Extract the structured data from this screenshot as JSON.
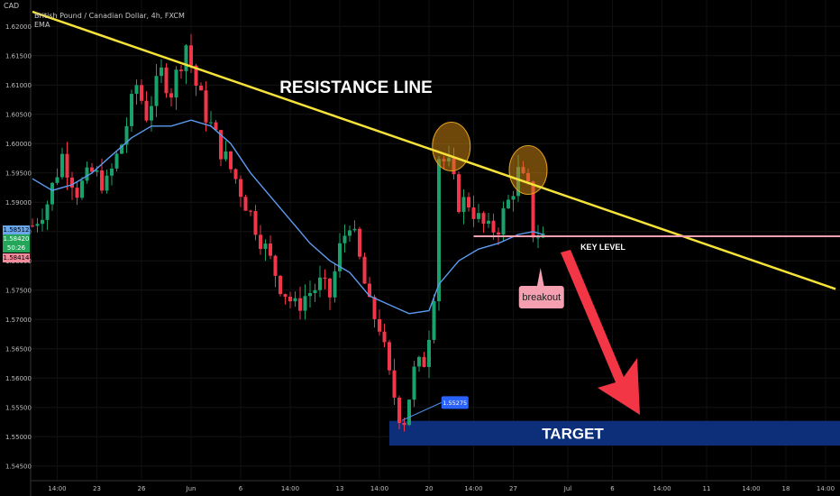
{
  "header": {
    "axis_currency": "CAD",
    "title": "British Pound / Canadian Dollar, 4h, FXCM",
    "indicator": "EMA"
  },
  "price_tags": [
    {
      "label": "1.58512",
      "color": "#6aa6e8"
    },
    {
      "label": "1.58420",
      "color": "#23a55a"
    },
    {
      "label": "50:26",
      "color": "#23a55a"
    },
    {
      "label": "1.58414",
      "color": "#f28b9b"
    }
  ],
  "annotations": {
    "resistance_label": "RESISTANCE LINE",
    "key_level_label": "KEY LEVEL",
    "breakout_label": "breakout",
    "target_label": "TARGET",
    "low_price_label": "1.55275"
  },
  "colors": {
    "bull": "#1aa06a",
    "bear": "#f2364a",
    "ema": "#5b9cf0",
    "resistance": "#f5e33a",
    "key_level": "#f4a0b0",
    "target_box": "#0d2f7a",
    "arrow": "#f23645"
  },
  "chart_data": {
    "type": "candlestick",
    "symbol": "GBPCAD",
    "timeframe": "4h",
    "y_ticks": [
      1.62,
      1.615,
      1.61,
      1.605,
      1.6,
      1.595,
      1.59,
      1.585,
      1.58,
      1.575,
      1.57,
      1.565,
      1.56,
      1.555,
      1.55,
      1.545
    ],
    "y_tick_labels": [
      "1.62000",
      "1.61500",
      "1.61000",
      "1.60500",
      "1.60000",
      "1.59500",
      "1.59000",
      "1.58500",
      "1.58000",
      "1.57500",
      "1.57000",
      "1.56500",
      "1.56000",
      "1.55500",
      "1.55000",
      "1.54500"
    ],
    "ylim": [
      1.5425,
      1.6245
    ],
    "x_tick_labels": [
      "14:00",
      "23",
      "26",
      "Jun",
      "6",
      "14:00",
      "13",
      "14:00",
      "20",
      "14:00",
      "27",
      "Jul",
      "6",
      "14:00",
      "11",
      "14:00",
      "18",
      "14:00"
    ],
    "x_tick_bars": [
      5,
      13,
      22,
      32,
      42,
      52,
      62,
      70,
      80,
      89,
      97,
      108,
      117,
      127,
      136,
      145,
      152,
      160
    ],
    "bar_count": 162,
    "close_path": [
      [
        0,
        1.586
      ],
      [
        3,
        1.59
      ],
      [
        6,
        1.598
      ],
      [
        9,
        1.592
      ],
      [
        12,
        1.595
      ],
      [
        15,
        1.593
      ],
      [
        18,
        1.6
      ],
      [
        21,
        1.61
      ],
      [
        23,
        1.605
      ],
      [
        26,
        1.612
      ],
      [
        28,
        1.609
      ],
      [
        31,
        1.617
      ],
      [
        33,
        1.61
      ],
      [
        35,
        1.605
      ],
      [
        38,
        1.599
      ],
      [
        41,
        1.594
      ],
      [
        43,
        1.59
      ],
      [
        46,
        1.584
      ],
      [
        48,
        1.58
      ],
      [
        50,
        1.576
      ],
      [
        53,
        1.572
      ],
      [
        55,
        1.574
      ],
      [
        58,
        1.576
      ],
      [
        60,
        1.574
      ],
      [
        62,
        1.582
      ],
      [
        64,
        1.587
      ],
      [
        66,
        1.58
      ],
      [
        68,
        1.572
      ],
      [
        70,
        1.569
      ],
      [
        72,
        1.56
      ],
      [
        74,
        1.554
      ],
      [
        75,
        1.553
      ],
      [
        77,
        1.561
      ],
      [
        79,
        1.563
      ],
      [
        80,
        1.568
      ],
      [
        81,
        1.575
      ],
      [
        82,
        1.598
      ],
      [
        84,
        1.596
      ],
      [
        86,
        1.59
      ],
      [
        88,
        1.59
      ],
      [
        90,
        1.587
      ],
      [
        92,
        1.585
      ],
      [
        94,
        1.586
      ],
      [
        96,
        1.59
      ],
      [
        98,
        1.595
      ],
      [
        100,
        1.592
      ],
      [
        101,
        1.585
      ],
      [
        103,
        1.5842
      ]
    ],
    "ema_path": [
      [
        0,
        1.594
      ],
      [
        4,
        1.592
      ],
      [
        8,
        1.593
      ],
      [
        12,
        1.595
      ],
      [
        16,
        1.598
      ],
      [
        20,
        1.601
      ],
      [
        24,
        1.603
      ],
      [
        28,
        1.603
      ],
      [
        32,
        1.604
      ],
      [
        36,
        1.603
      ],
      [
        40,
        1.6
      ],
      [
        44,
        1.595
      ],
      [
        48,
        1.591
      ],
      [
        52,
        1.587
      ],
      [
        56,
        1.583
      ],
      [
        60,
        1.58
      ],
      [
        64,
        1.578
      ],
      [
        68,
        1.574
      ],
      [
        72,
        1.5725
      ],
      [
        76,
        1.571
      ],
      [
        80,
        1.5715
      ],
      [
        82,
        1.576
      ],
      [
        86,
        1.58
      ],
      [
        90,
        1.582
      ],
      [
        94,
        1.583
      ],
      [
        98,
        1.5845
      ],
      [
        101,
        1.585
      ],
      [
        103,
        1.5845
      ]
    ],
    "resistance_line": [
      [
        0,
        1.6225
      ],
      [
        162,
        1.5752
      ]
    ],
    "key_level": 1.5842,
    "low_marker": {
      "bar": 74.5,
      "price": 1.55275
    },
    "target_zone": [
      1.5485,
      1.5527
    ],
    "resistance_touches": [
      {
        "bar": 84.5,
        "price": 1.5995
      },
      {
        "bar": 100,
        "price": 1.5955
      }
    ],
    "breakout_bar": 102.5
  }
}
